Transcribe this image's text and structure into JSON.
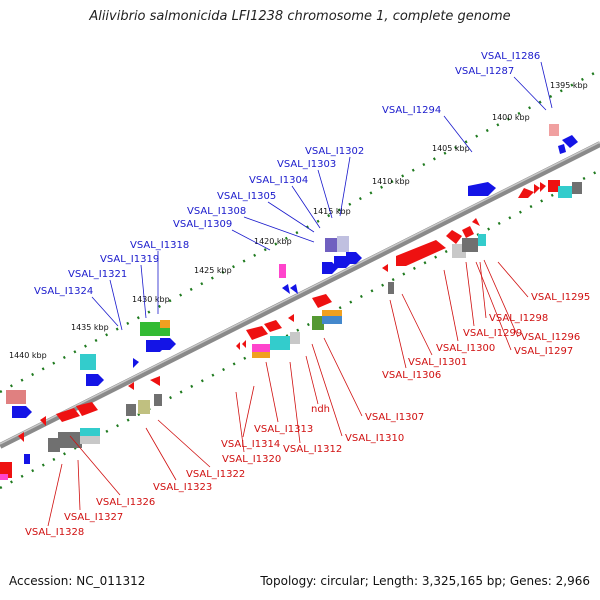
{
  "title": "Aliivibrio salmonicida LFI1238 chromosome 1, complete genome",
  "footer": {
    "accession": "Accession: NC_011312",
    "summary": "Topology: circular; Length: 3,325,165 bp; Genes: 2,966"
  },
  "colors": {
    "forward_label": "#1a1acc",
    "reverse_label": "#d01010",
    "backbone": "#8a8a8a",
    "tick": "#1f7a1f",
    "forward_gene": "#1414e6",
    "reverse_gene": "#ee1111"
  },
  "kbp_ticks": [
    "1395 kbp",
    "1400 kbp",
    "1405 kbp",
    "1410 kbp",
    "1415 kbp",
    "1420 kbp",
    "1425 kbp",
    "1430 kbp",
    "1435 kbp",
    "1440 kbp"
  ],
  "forward_labels": [
    "VSAL_I1286",
    "VSAL_I1287",
    "VSAL_I1294",
    "VSAL_I1302",
    "VSAL_I1303",
    "VSAL_I1304",
    "VSAL_I1305",
    "VSAL_I1308",
    "VSAL_I1309",
    "VSAL_I1318",
    "VSAL_I1319",
    "VSAL_I1321",
    "VSAL_I1324"
  ],
  "reverse_labels": [
    "VSAL_I1295",
    "VSAL_I1298",
    "VSAL_I1299",
    "VSAL_I1296",
    "VSAL_I1297",
    "VSAL_I1300",
    "VSAL_I1301",
    "VSAL_I1306",
    "VSAL_I1307",
    "VSAL_I1310",
    "ndh",
    "VSAL_I1313",
    "VSAL_I1312",
    "VSAL_I1314",
    "VSAL_I1320",
    "VSAL_I1322",
    "VSAL_I1323",
    "VSAL_I1326",
    "VSAL_I1327",
    "VSAL_I1328"
  ]
}
